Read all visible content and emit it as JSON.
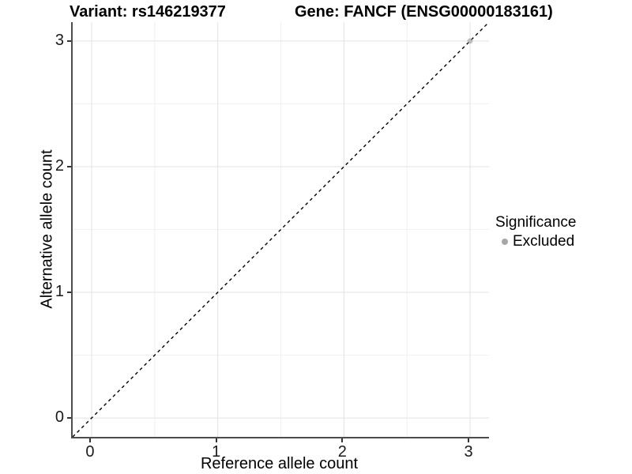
{
  "titles": {
    "variant": "Variant: rs146219377",
    "gene": "Gene: FANCF (ENSG00000183161)"
  },
  "axes": {
    "x": {
      "label": "Reference allele count"
    },
    "y": {
      "label": "Alternative allele count"
    }
  },
  "legend": {
    "title": "Significance",
    "items": [
      {
        "label": "Excluded",
        "color": "#a6a6a6"
      }
    ]
  },
  "colors": {
    "grid_major": "#e3e3e3",
    "grid_minor": "#f0f0f0",
    "axis_line": "#4d4d4d",
    "tick_mark": "#333333",
    "reference_line": "#000000",
    "point_fill": "#9e9e9e",
    "background": "#ffffff"
  },
  "chart_data": {
    "type": "scatter",
    "title": "Variant: rs146219377 / Gene: FANCF (ENSG00000183161)",
    "xlabel": "Reference allele count",
    "ylabel": "Alternative allele count",
    "xlim": [
      -0.15,
      3.15
    ],
    "ylim": [
      -0.15,
      3.15
    ],
    "xticks": [
      0,
      1,
      2,
      3
    ],
    "yticks": [
      0,
      1,
      2,
      3
    ],
    "grid": true,
    "legend_position": "right",
    "series": [
      {
        "name": "Excluded",
        "color": "#9e9e9e",
        "opacity": 0.6,
        "points": [
          {
            "x": 3,
            "y": 3
          }
        ]
      }
    ],
    "annotations": [
      {
        "type": "abline",
        "slope": 1,
        "intercept": 0,
        "linetype": "dashed",
        "color": "#000000"
      }
    ]
  }
}
